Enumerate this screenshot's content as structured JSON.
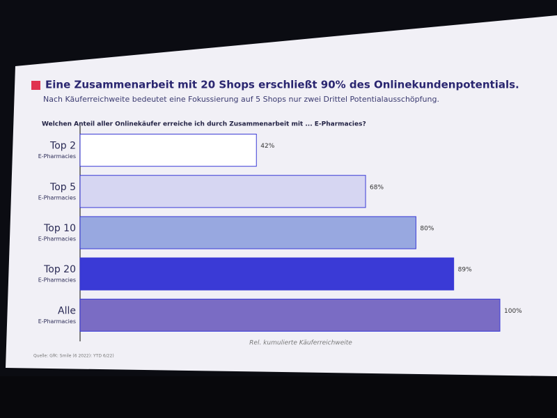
{
  "chart_data": {
    "type": "hbar",
    "title": "Eine Zusammenarbeit mit 20 Shops erschließt 90% des Onlinekundenpotentials.",
    "subtitle": "Nach Käuferreichweite bedeutet eine Fokussierung auf 5 Shops nur zwei Drittel Potentialausschöpfung.",
    "question": "Welchen Anteil aller Onlinekäufer erreiche ich durch Zusammenarbeit mit ... E-Pharmacies?",
    "categories": [
      "Top 2",
      "Top 5",
      "Top 10",
      "Top 20",
      "Alle"
    ],
    "category_sublabels": [
      "E-Pharmacies",
      "E-Pharmacies",
      "E-Pharmacies",
      "E-Pharmacies",
      "E-Pharmacies"
    ],
    "values": [
      42,
      68,
      80,
      89,
      100
    ],
    "value_labels": [
      "42%",
      "68%",
      "80%",
      "89%",
      "100%"
    ],
    "colors": [
      "#ffffff",
      "#d6d6f2",
      "#98a8e0",
      "#3a3ad6",
      "#7a6cc4"
    ],
    "x_label": "Rel. kumulierte Käuferreichweite",
    "xlim": [
      0,
      100
    ],
    "source": "Quelle: GfK: Smile (6 2022): YTD 6/22)"
  }
}
